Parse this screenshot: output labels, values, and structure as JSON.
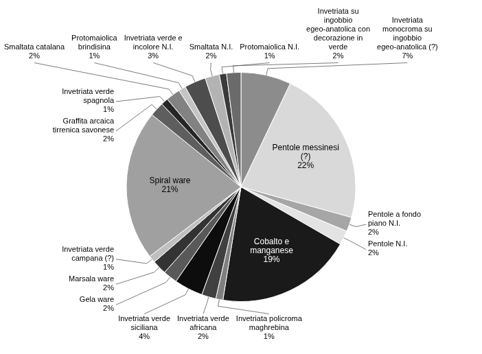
{
  "chart_data": {
    "type": "pie",
    "categories": [
      "Invetriata monocroma su ingobbio egeo-anatolica (?)",
      "Pentole messinesi (?)",
      "Pentole a fondo piano N.I.",
      "Pentole N.I.",
      "Cobalto e manganese",
      "Invetriata policroma maghrebina",
      "Invetriata verde africana",
      "Invetriata verde siciliana",
      "Gela ware",
      "Marsala ware",
      "Invetriata verde campana (?)",
      "Spiral ware",
      "Graffita arcaica tirrenica savonese",
      "Invetriata verde spagnola",
      "Smaltata catalana",
      "Protomaiolica brindisina",
      "Invetriata verde e incolore N.I.",
      "Smaltata N.I.",
      "Protomaiolica N.I.",
      "Invetriata su ingobbio egeo-anatolica con decorazione in verde"
    ],
    "values": [
      7,
      22,
      2,
      2,
      19,
      1,
      2,
      4,
      2,
      2,
      1,
      21,
      2,
      1,
      2,
      1,
      3,
      2,
      1,
      2
    ],
    "value_labels": [
      "7%",
      "22%",
      "2%",
      "2%",
      "19%",
      "1%",
      "2%",
      "4%",
      "2%",
      "2%",
      "1%",
      "21%",
      "2%",
      "1%",
      "2%",
      "1%",
      "3%",
      "2%",
      "1%",
      "2%"
    ],
    "colors": [
      "#8c8c8c",
      "#d9d9d9",
      "#a6a6a6",
      "#e3e3e3",
      "#1a1a1a",
      "#7f7f7f",
      "#404040",
      "#0d0d0d",
      "#595959",
      "#333333",
      "#bfbfbf",
      "#a0a0a0",
      "#5e5e5e",
      "#262626",
      "#828282",
      "#c4c4c4",
      "#4d4d4d",
      "#b3b3b3",
      "#3a3a3a",
      "#6b6b6b"
    ],
    "data_labels": true
  }
}
